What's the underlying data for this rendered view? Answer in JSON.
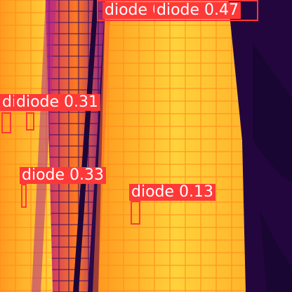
{
  "image": {
    "kind": "thermal aerial image of solar panel rows",
    "colors": {
      "hot": "#ffd23a",
      "warm": "#ff8a1a",
      "mid": "#e0306a",
      "cool": "#7a1a8a",
      "cold": "#2a0a4a",
      "box": "#ff3838"
    }
  },
  "detections": [
    {
      "label": "diode 0.47"
    },
    {
      "label": "diode 0.47"
    },
    {
      "label": "diode 0.31"
    },
    {
      "label": "diode 0.31"
    },
    {
      "label": "diode 0.33"
    },
    {
      "label": "diode 0.13"
    }
  ]
}
